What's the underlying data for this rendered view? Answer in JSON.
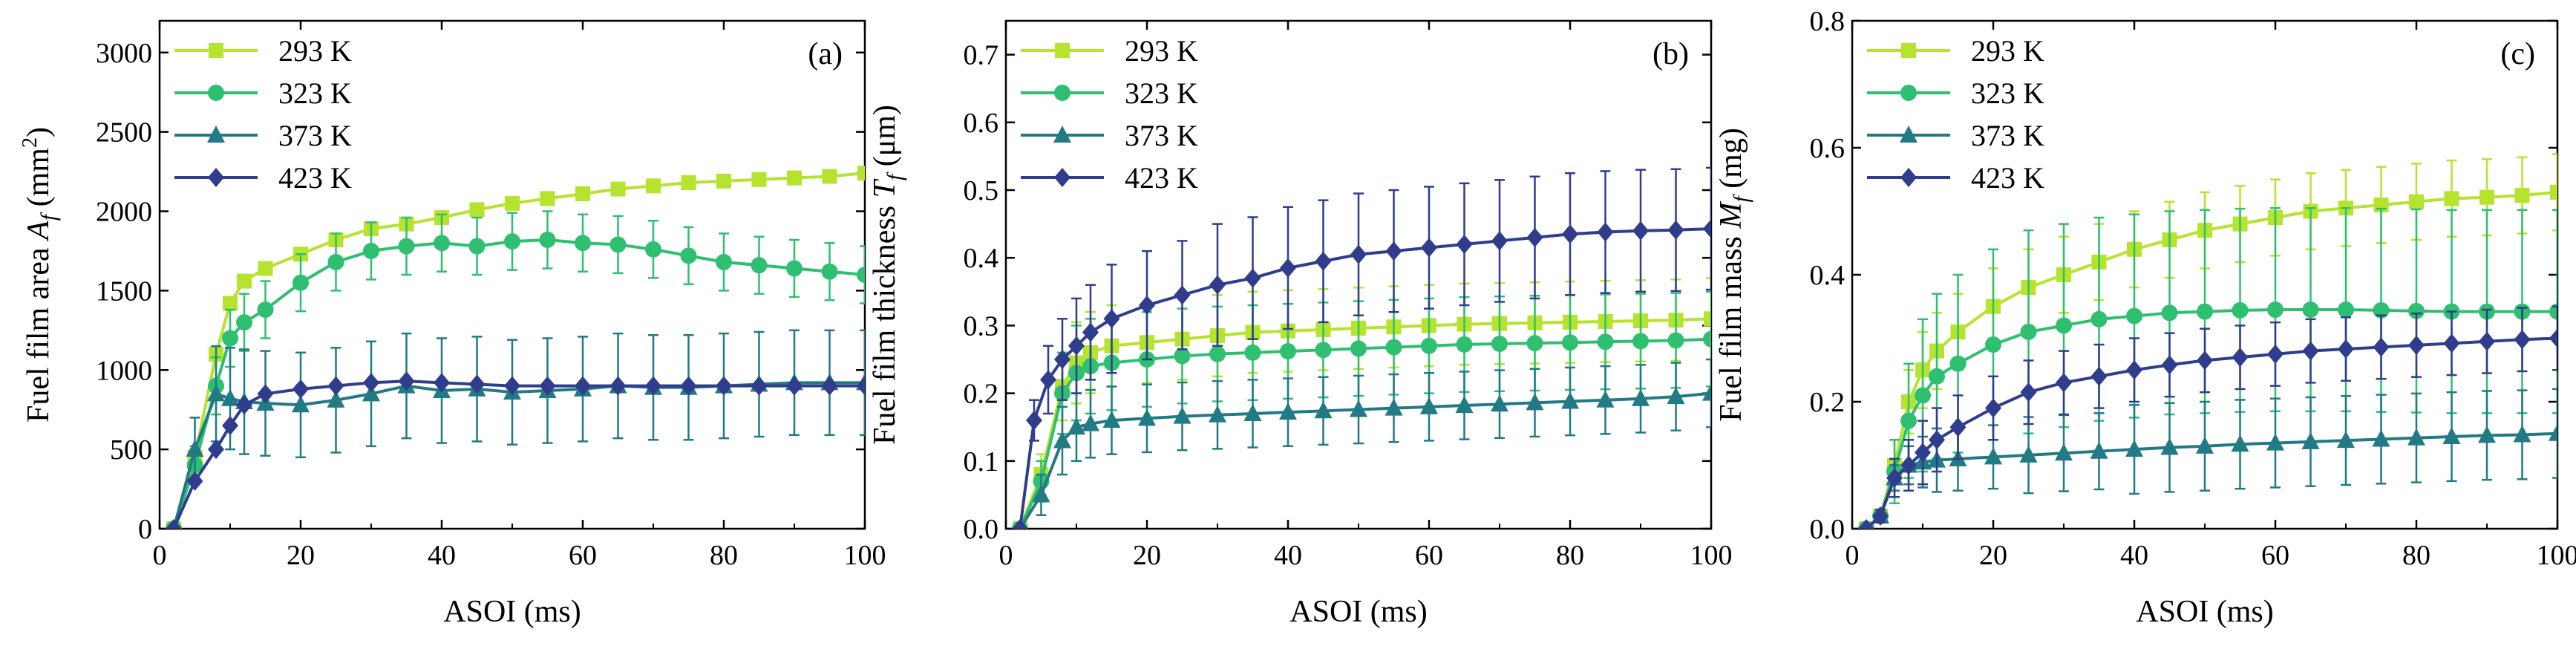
{
  "series_colors": {
    "293 K": "#b5e32e",
    "323 K": "#2fbf71",
    "373 K": "#217a84",
    "423 K": "#2f3d8c"
  },
  "chart_data": [
    {
      "type": "line",
      "panel_label": "(a)",
      "title": "",
      "xlabel": "ASOI (ms)",
      "ylabel": "Fuel film area A_f (mm²)",
      "ylabel_parts": {
        "pre": "Fuel film area ",
        "var": "A",
        "sub": "f",
        "post": " (mm",
        "sup": "2",
        "end": ")"
      },
      "xlim": [
        0,
        100
      ],
      "ylim": [
        0,
        3200
      ],
      "xticks": [
        0,
        20,
        40,
        60,
        80,
        100
      ],
      "yticks": [
        0,
        500,
        1000,
        1500,
        2000,
        2500,
        3000
      ],
      "legend_position": "top-left",
      "legend": [
        "293 K",
        "323 K",
        "373 K",
        "423 K"
      ],
      "series": [
        {
          "name": "293 K",
          "marker": "square",
          "x": [
            2,
            5,
            8,
            10,
            12,
            15,
            20,
            25,
            30,
            35,
            40,
            45,
            50,
            55,
            60,
            65,
            70,
            75,
            80,
            85,
            90,
            95,
            100
          ],
          "y": [
            0,
            450,
            1100,
            1420,
            1560,
            1640,
            1730,
            1820,
            1890,
            1920,
            1960,
            2010,
            2050,
            2080,
            2110,
            2140,
            2160,
            2180,
            2190,
            2200,
            2210,
            2220,
            2240
          ],
          "err": [
            0,
            0,
            0,
            0,
            0,
            0,
            0,
            0,
            0,
            0,
            0,
            0,
            0,
            0,
            0,
            0,
            0,
            0,
            0,
            0,
            0,
            0,
            0
          ]
        },
        {
          "name": "323 K",
          "marker": "circle",
          "x": [
            2,
            5,
            8,
            10,
            12,
            15,
            20,
            25,
            30,
            35,
            40,
            45,
            50,
            55,
            60,
            65,
            70,
            75,
            80,
            85,
            90,
            95,
            100
          ],
          "y": [
            0,
            400,
            900,
            1200,
            1300,
            1380,
            1550,
            1680,
            1750,
            1780,
            1800,
            1780,
            1810,
            1820,
            1800,
            1790,
            1760,
            1720,
            1680,
            1660,
            1640,
            1620,
            1600
          ],
          "err": [
            0,
            120,
            180,
            180,
            180,
            180,
            180,
            180,
            180,
            180,
            180,
            180,
            180,
            180,
            180,
            180,
            180,
            180,
            180,
            180,
            180,
            180,
            180
          ]
        },
        {
          "name": "373 K",
          "marker": "triangle",
          "x": [
            2,
            5,
            8,
            10,
            12,
            15,
            20,
            25,
            30,
            35,
            40,
            45,
            50,
            55,
            60,
            65,
            70,
            75,
            80,
            85,
            90,
            95,
            100
          ],
          "y": [
            0,
            500,
            850,
            820,
            800,
            790,
            780,
            810,
            850,
            900,
            870,
            880,
            860,
            870,
            880,
            900,
            890,
            890,
            900,
            910,
            920,
            920,
            920
          ],
          "err": [
            0,
            200,
            300,
            320,
            330,
            330,
            330,
            330,
            330,
            330,
            330,
            330,
            330,
            330,
            330,
            330,
            330,
            330,
            330,
            330,
            330,
            330,
            330
          ]
        },
        {
          "name": "423 K",
          "marker": "diamond",
          "x": [
            2,
            5,
            8,
            10,
            12,
            15,
            20,
            25,
            30,
            35,
            40,
            45,
            50,
            55,
            60,
            65,
            70,
            75,
            80,
            85,
            90,
            95,
            100
          ],
          "y": [
            0,
            300,
            500,
            650,
            780,
            850,
            880,
            900,
            920,
            930,
            920,
            910,
            900,
            900,
            900,
            900,
            900,
            900,
            900,
            900,
            900,
            900,
            900
          ],
          "err": [
            0,
            0,
            0,
            0,
            0,
            0,
            0,
            0,
            0,
            0,
            0,
            0,
            0,
            0,
            0,
            0,
            0,
            0,
            0,
            0,
            0,
            0,
            0
          ]
        }
      ]
    },
    {
      "type": "line",
      "panel_label": "(b)",
      "title": "",
      "xlabel": "ASOI (ms)",
      "ylabel": "Fuel film thickness T_f (μm)",
      "ylabel_parts": {
        "pre": "Fuel film thickness ",
        "var": "T",
        "sub": "f",
        "post": " (μm)",
        "sup": "",
        "end": ""
      },
      "xlim": [
        0,
        100
      ],
      "ylim": [
        0,
        0.75
      ],
      "xticks": [
        0,
        20,
        40,
        60,
        80,
        100
      ],
      "yticks": [
        0.0,
        0.1,
        0.2,
        0.3,
        0.4,
        0.5,
        0.6,
        0.7
      ],
      "ytick_labels": [
        "0.0",
        "0.1",
        "0.2",
        "0.3",
        "0.4",
        "0.5",
        "0.6",
        "0.7"
      ],
      "legend_position": "top-left",
      "legend": [
        "293 K",
        "323 K",
        "373 K",
        "423 K"
      ],
      "series": [
        {
          "name": "293 K",
          "marker": "square",
          "x": [
            2,
            5,
            8,
            10,
            12,
            15,
            20,
            25,
            30,
            35,
            40,
            45,
            50,
            55,
            60,
            65,
            70,
            75,
            80,
            85,
            90,
            95,
            100
          ],
          "y": [
            0,
            0.08,
            0.21,
            0.245,
            0.26,
            0.27,
            0.275,
            0.28,
            0.285,
            0.29,
            0.292,
            0.294,
            0.296,
            0.298,
            0.3,
            0.302,
            0.303,
            0.304,
            0.305,
            0.306,
            0.307,
            0.308,
            0.31
          ],
          "err": [
            0,
            0.03,
            0.05,
            0.06,
            0.06,
            0.06,
            0.06,
            0.06,
            0.06,
            0.06,
            0.06,
            0.06,
            0.06,
            0.06,
            0.06,
            0.06,
            0.06,
            0.06,
            0.06,
            0.06,
            0.06,
            0.06,
            0.06
          ]
        },
        {
          "name": "323 K",
          "marker": "circle",
          "x": [
            2,
            5,
            8,
            10,
            12,
            15,
            20,
            25,
            30,
            35,
            40,
            45,
            50,
            55,
            60,
            65,
            70,
            75,
            80,
            85,
            90,
            95,
            100
          ],
          "y": [
            0,
            0.07,
            0.2,
            0.23,
            0.24,
            0.245,
            0.25,
            0.255,
            0.258,
            0.26,
            0.262,
            0.264,
            0.266,
            0.268,
            0.27,
            0.272,
            0.273,
            0.274,
            0.275,
            0.276,
            0.277,
            0.278,
            0.28
          ],
          "err": [
            0,
            0.03,
            0.06,
            0.07,
            0.07,
            0.07,
            0.07,
            0.07,
            0.07,
            0.07,
            0.07,
            0.07,
            0.07,
            0.07,
            0.07,
            0.07,
            0.07,
            0.07,
            0.07,
            0.07,
            0.07,
            0.07,
            0.07
          ]
        },
        {
          "name": "373 K",
          "marker": "triangle",
          "x": [
            2,
            5,
            8,
            10,
            12,
            15,
            20,
            25,
            30,
            35,
            40,
            45,
            50,
            55,
            60,
            65,
            70,
            75,
            80,
            85,
            90,
            95,
            100
          ],
          "y": [
            0,
            0.05,
            0.13,
            0.15,
            0.155,
            0.16,
            0.163,
            0.166,
            0.168,
            0.17,
            0.172,
            0.174,
            0.176,
            0.178,
            0.18,
            0.182,
            0.184,
            0.186,
            0.188,
            0.19,
            0.192,
            0.195,
            0.2
          ],
          "err": [
            0,
            0.03,
            0.05,
            0.05,
            0.05,
            0.05,
            0.05,
            0.05,
            0.05,
            0.05,
            0.05,
            0.05,
            0.05,
            0.05,
            0.05,
            0.05,
            0.05,
            0.05,
            0.05,
            0.05,
            0.05,
            0.05,
            0.05
          ]
        },
        {
          "name": "423 K",
          "marker": "diamond",
          "x": [
            2,
            4,
            6,
            8,
            10,
            12,
            15,
            20,
            25,
            30,
            35,
            40,
            45,
            50,
            55,
            60,
            65,
            70,
            75,
            80,
            85,
            90,
            95,
            100
          ],
          "y": [
            0,
            0.16,
            0.22,
            0.25,
            0.27,
            0.29,
            0.31,
            0.33,
            0.345,
            0.36,
            0.37,
            0.385,
            0.395,
            0.405,
            0.41,
            0.415,
            0.42,
            0.425,
            0.43,
            0.435,
            0.438,
            0.44,
            0.441,
            0.443
          ],
          "err": [
            0,
            0.03,
            0.05,
            0.06,
            0.07,
            0.07,
            0.08,
            0.08,
            0.08,
            0.09,
            0.09,
            0.09,
            0.09,
            0.09,
            0.09,
            0.09,
            0.09,
            0.09,
            0.09,
            0.09,
            0.09,
            0.09,
            0.09,
            0.09
          ]
        }
      ]
    },
    {
      "type": "line",
      "panel_label": "(c)",
      "title": "",
      "xlabel": "ASOI (ms)",
      "ylabel": "Fuel film mass M_f (mg)",
      "ylabel_parts": {
        "pre": "Fuel film mass ",
        "var": "M",
        "sub": "f",
        "post": " (mg)",
        "sup": "",
        "end": ""
      },
      "xlim": [
        0,
        100
      ],
      "ylim": [
        0,
        0.8
      ],
      "xticks": [
        0,
        20,
        40,
        60,
        80,
        100
      ],
      "yticks": [
        0.0,
        0.2,
        0.4,
        0.6,
        0.8
      ],
      "ytick_labels": [
        "0.0",
        "0.2",
        "0.4",
        "0.6",
        "0.8"
      ],
      "legend_position": "top-left",
      "legend": [
        "293 K",
        "323 K",
        "373 K",
        "423 K"
      ],
      "series": [
        {
          "name": "293 K",
          "marker": "square",
          "x": [
            2,
            4,
            6,
            8,
            10,
            12,
            15,
            20,
            25,
            30,
            35,
            40,
            45,
            50,
            55,
            60,
            65,
            70,
            75,
            80,
            85,
            90,
            95,
            100
          ],
          "y": [
            0,
            0.02,
            0.1,
            0.2,
            0.25,
            0.28,
            0.31,
            0.35,
            0.38,
            0.4,
            0.42,
            0.44,
            0.455,
            0.47,
            0.48,
            0.49,
            0.5,
            0.505,
            0.51,
            0.515,
            0.52,
            0.522,
            0.525,
            0.53
          ],
          "err": [
            0,
            0.01,
            0.04,
            0.05,
            0.06,
            0.06,
            0.06,
            0.06,
            0.06,
            0.06,
            0.06,
            0.06,
            0.06,
            0.06,
            0.06,
            0.06,
            0.06,
            0.06,
            0.06,
            0.06,
            0.06,
            0.06,
            0.06,
            0.06
          ]
        },
        {
          "name": "323 K",
          "marker": "circle",
          "x": [
            2,
            4,
            6,
            8,
            10,
            12,
            15,
            20,
            25,
            30,
            35,
            40,
            45,
            50,
            55,
            60,
            65,
            70,
            75,
            80,
            85,
            90,
            95,
            100
          ],
          "y": [
            0,
            0.02,
            0.09,
            0.17,
            0.21,
            0.24,
            0.26,
            0.29,
            0.31,
            0.32,
            0.33,
            0.335,
            0.34,
            0.342,
            0.344,
            0.345,
            0.345,
            0.345,
            0.344,
            0.343,
            0.342,
            0.342,
            0.342,
            0.342
          ],
          "err": [
            0,
            0.01,
            0.05,
            0.09,
            0.12,
            0.13,
            0.14,
            0.15,
            0.16,
            0.16,
            0.16,
            0.16,
            0.16,
            0.16,
            0.16,
            0.16,
            0.16,
            0.16,
            0.16,
            0.16,
            0.16,
            0.16,
            0.16,
            0.16
          ]
        },
        {
          "name": "373 K",
          "marker": "triangle",
          "x": [
            2,
            4,
            6,
            8,
            10,
            12,
            15,
            20,
            25,
            30,
            35,
            40,
            45,
            50,
            55,
            60,
            65,
            70,
            75,
            80,
            85,
            90,
            95,
            100
          ],
          "y": [
            0,
            0.02,
            0.08,
            0.1,
            0.105,
            0.108,
            0.11,
            0.113,
            0.116,
            0.119,
            0.122,
            0.125,
            0.128,
            0.13,
            0.133,
            0.135,
            0.137,
            0.139,
            0.141,
            0.143,
            0.145,
            0.147,
            0.148,
            0.15
          ],
          "err": [
            0,
            0.01,
            0.02,
            0.03,
            0.04,
            0.05,
            0.05,
            0.05,
            0.06,
            0.06,
            0.06,
            0.07,
            0.07,
            0.07,
            0.07,
            0.07,
            0.07,
            0.07,
            0.07,
            0.07,
            0.07,
            0.07,
            0.07,
            0.07
          ]
        },
        {
          "name": "423 K",
          "marker": "diamond",
          "x": [
            2,
            4,
            6,
            8,
            10,
            12,
            15,
            20,
            25,
            30,
            35,
            40,
            45,
            50,
            55,
            60,
            65,
            70,
            75,
            80,
            85,
            90,
            95,
            100
          ],
          "y": [
            0,
            0.02,
            0.08,
            0.1,
            0.12,
            0.14,
            0.16,
            0.19,
            0.215,
            0.23,
            0.24,
            0.25,
            0.258,
            0.265,
            0.27,
            0.275,
            0.28,
            0.283,
            0.286,
            0.289,
            0.292,
            0.295,
            0.298,
            0.3
          ],
          "err": [
            0,
            0.01,
            0.03,
            0.04,
            0.05,
            0.05,
            0.05,
            0.05,
            0.05,
            0.05,
            0.05,
            0.05,
            0.05,
            0.05,
            0.05,
            0.05,
            0.05,
            0.05,
            0.05,
            0.05,
            0.05,
            0.05,
            0.05,
            0.05
          ]
        }
      ]
    }
  ]
}
